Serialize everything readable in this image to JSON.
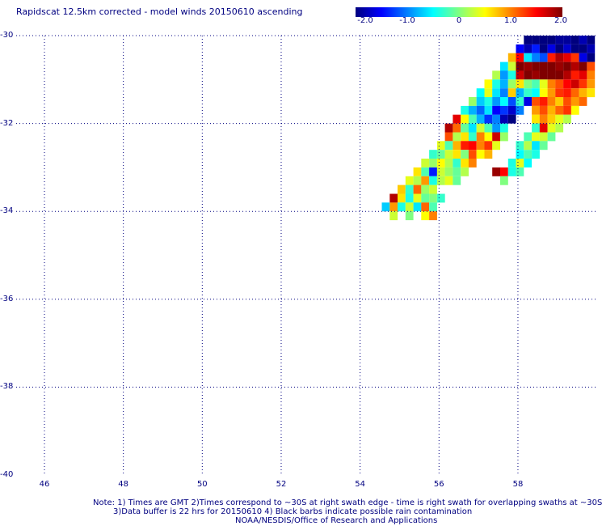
{
  "title": "Rapidscat 12.5km corrected - model winds 20150610 ascending",
  "colorbar": {
    "labels": [
      "-2.0",
      "-1.0",
      "0",
      "1.0",
      "2.0"
    ],
    "values": [
      -2.0,
      -1.0,
      0,
      1.0,
      2.0
    ],
    "min": -2.0,
    "max": 2.0,
    "colors": [
      "#00007f",
      "#0000ff",
      "#0080ff",
      "#00ffff",
      "#80ff80",
      "#ffff00",
      "#ff8000",
      "#ff0000",
      "#7f0000"
    ]
  },
  "axes": {
    "lat_labels": [
      "-30",
      "-32",
      "-34",
      "-36",
      "-38",
      "-40"
    ],
    "lat_values": [
      -30,
      -32,
      -34,
      -36,
      -38,
      -40
    ],
    "lon_labels": [
      "46",
      "48",
      "50",
      "52",
      "54",
      "56",
      "58"
    ],
    "lon_values": [
      46,
      48,
      50,
      52,
      54,
      56,
      58
    ],
    "lon_range": [
      45.1,
      60.2
    ],
    "lat_range": [
      -30,
      -40
    ],
    "grid": "dotted"
  },
  "chart_data": {
    "type": "heatmap",
    "description_of_cells": "values are wind difference in colorbar units at (lon, lat)",
    "cells": [
      [
        58.25,
        -30.1,
        -2.0
      ],
      [
        58.45,
        -30.1,
        -2.0
      ],
      [
        58.65,
        -30.1,
        -2.0
      ],
      [
        58.85,
        -30.1,
        -2.0
      ],
      [
        59.05,
        -30.1,
        -1.9
      ],
      [
        59.25,
        -30.1,
        -1.9
      ],
      [
        59.45,
        -30.1,
        -2.0
      ],
      [
        59.65,
        -30.1,
        -1.8
      ],
      [
        59.85,
        -30.1,
        -2.0
      ],
      [
        58.05,
        -30.3,
        -1.5
      ],
      [
        58.25,
        -30.3,
        -1.8
      ],
      [
        58.45,
        -30.3,
        -1.4
      ],
      [
        58.65,
        -30.3,
        -2.0
      ],
      [
        58.85,
        -30.3,
        -1.6
      ],
      [
        59.05,
        -30.3,
        -2.0
      ],
      [
        59.25,
        -30.3,
        -1.7
      ],
      [
        59.45,
        -30.3,
        -2.0
      ],
      [
        59.65,
        -30.3,
        -2.0
      ],
      [
        59.85,
        -30.3,
        -1.8
      ],
      [
        57.85,
        -30.5,
        0.8
      ],
      [
        58.05,
        -30.5,
        1.5
      ],
      [
        58.25,
        -30.5,
        -0.6
      ],
      [
        58.45,
        -30.5,
        -1.0
      ],
      [
        58.65,
        -30.5,
        -1.2
      ],
      [
        58.85,
        -30.5,
        1.4
      ],
      [
        59.05,
        -30.5,
        1.8
      ],
      [
        59.25,
        -30.5,
        1.6
      ],
      [
        59.45,
        -30.5,
        1.3
      ],
      [
        59.65,
        -30.5,
        -1.6
      ],
      [
        59.85,
        -30.5,
        -2.0
      ],
      [
        57.65,
        -30.7,
        -0.6
      ],
      [
        57.85,
        -30.7,
        0.3
      ],
      [
        58.05,
        -30.7,
        2.0
      ],
      [
        58.25,
        -30.7,
        1.9
      ],
      [
        58.45,
        -30.7,
        2.0
      ],
      [
        58.65,
        -30.7,
        2.0
      ],
      [
        58.85,
        -30.7,
        2.0
      ],
      [
        59.05,
        -30.7,
        1.9
      ],
      [
        59.25,
        -30.7,
        2.0
      ],
      [
        59.45,
        -30.7,
        1.8
      ],
      [
        59.65,
        -30.7,
        2.0
      ],
      [
        59.85,
        -30.7,
        1.2
      ],
      [
        57.45,
        -30.9,
        0.2
      ],
      [
        57.65,
        -30.9,
        -0.9
      ],
      [
        57.85,
        -30.9,
        -0.4
      ],
      [
        58.05,
        -30.9,
        1.7
      ],
      [
        58.25,
        -30.9,
        2.0
      ],
      [
        58.45,
        -30.9,
        1.9
      ],
      [
        58.65,
        -30.9,
        2.0
      ],
      [
        58.85,
        -30.9,
        2.0
      ],
      [
        59.05,
        -30.9,
        2.0
      ],
      [
        59.25,
        -30.9,
        1.8
      ],
      [
        59.45,
        -30.9,
        1.4
      ],
      [
        59.65,
        -30.9,
        1.6
      ],
      [
        59.85,
        -30.9,
        1.0
      ],
      [
        57.25,
        -31.1,
        0.5
      ],
      [
        57.45,
        -31.1,
        -0.4
      ],
      [
        57.65,
        -31.1,
        -0.8
      ],
      [
        57.85,
        -31.1,
        0.1
      ],
      [
        58.05,
        -31.1,
        0.6
      ],
      [
        58.25,
        -31.1,
        0.0
      ],
      [
        58.45,
        -31.1,
        -0.2
      ],
      [
        58.65,
        -31.1,
        0.4
      ],
      [
        58.85,
        -31.1,
        1.0
      ],
      [
        59.05,
        -31.1,
        1.2
      ],
      [
        59.25,
        -31.1,
        1.5
      ],
      [
        59.45,
        -31.1,
        1.7
      ],
      [
        59.65,
        -31.1,
        1.3
      ],
      [
        59.85,
        -31.1,
        0.9
      ],
      [
        57.05,
        -31.3,
        -0.5
      ],
      [
        57.25,
        -31.3,
        0.4
      ],
      [
        57.45,
        -31.3,
        -0.6
      ],
      [
        57.65,
        -31.3,
        -1.0
      ],
      [
        57.85,
        -31.3,
        0.7
      ],
      [
        58.05,
        -31.3,
        -0.8
      ],
      [
        58.25,
        -31.3,
        -0.3
      ],
      [
        58.45,
        -31.3,
        -0.5
      ],
      [
        58.65,
        -31.3,
        0.5
      ],
      [
        58.85,
        -31.3,
        0.9
      ],
      [
        59.05,
        -31.3,
        1.3
      ],
      [
        59.25,
        -31.3,
        1.4
      ],
      [
        59.45,
        -31.3,
        1.1
      ],
      [
        59.65,
        -31.3,
        0.8
      ],
      [
        59.85,
        -31.3,
        0.6
      ],
      [
        56.85,
        -31.5,
        0.1
      ],
      [
        57.05,
        -31.5,
        -0.7
      ],
      [
        57.25,
        -31.5,
        -0.4
      ],
      [
        57.45,
        -31.5,
        -0.9
      ],
      [
        57.65,
        -31.5,
        -0.5
      ],
      [
        57.85,
        -31.5,
        -1.2
      ],
      [
        58.05,
        -31.5,
        -0.3
      ],
      [
        58.25,
        -31.5,
        -1.6
      ],
      [
        58.45,
        -31.5,
        1.2
      ],
      [
        58.65,
        -31.5,
        1.4
      ],
      [
        58.85,
        -31.5,
        1.0
      ],
      [
        59.05,
        -31.5,
        0.7
      ],
      [
        59.25,
        -31.5,
        1.2
      ],
      [
        59.45,
        -31.5,
        0.9
      ],
      [
        59.65,
        -31.5,
        1.1
      ],
      [
        56.65,
        -31.7,
        -0.4
      ],
      [
        56.85,
        -31.7,
        -0.8
      ],
      [
        57.05,
        -31.7,
        -1.1
      ],
      [
        57.25,
        -31.7,
        -0.6
      ],
      [
        57.45,
        -31.7,
        -1.5
      ],
      [
        57.65,
        -31.7,
        -1.3
      ],
      [
        57.85,
        -31.7,
        -1.7
      ],
      [
        58.05,
        -31.7,
        -1.0
      ],
      [
        58.45,
        -31.7,
        0.9
      ],
      [
        58.65,
        -31.7,
        1.2
      ],
      [
        58.85,
        -31.7,
        0.8
      ],
      [
        59.05,
        -31.7,
        1.1
      ],
      [
        59.25,
        -31.7,
        1.3
      ],
      [
        59.45,
        -31.7,
        0.5
      ],
      [
        56.45,
        -31.9,
        1.6
      ],
      [
        56.65,
        -31.9,
        0.5
      ],
      [
        56.85,
        -31.9,
        -0.2
      ],
      [
        57.05,
        -31.9,
        -0.8
      ],
      [
        57.25,
        -31.9,
        -1.3
      ],
      [
        57.45,
        -31.9,
        -1.0
      ],
      [
        57.65,
        -31.9,
        -1.8
      ],
      [
        57.85,
        -31.9,
        -2.0
      ],
      [
        58.45,
        -31.9,
        0.6
      ],
      [
        58.65,
        -31.9,
        1.0
      ],
      [
        58.85,
        -31.9,
        0.7
      ],
      [
        59.05,
        -31.9,
        0.4
      ],
      [
        59.25,
        -31.9,
        0.2
      ],
      [
        56.25,
        -32.1,
        1.8
      ],
      [
        56.45,
        -32.1,
        1.1
      ],
      [
        56.65,
        -32.1,
        -0.1
      ],
      [
        56.85,
        -32.1,
        -0.6
      ],
      [
        57.05,
        -32.1,
        0.3
      ],
      [
        57.25,
        -32.1,
        -0.2
      ],
      [
        57.45,
        -32.1,
        -0.9
      ],
      [
        57.65,
        -32.1,
        -0.4
      ],
      [
        58.45,
        -32.1,
        -0.3
      ],
      [
        58.65,
        -32.1,
        1.6
      ],
      [
        58.85,
        -32.1,
        0.4
      ],
      [
        59.05,
        -32.1,
        0.2
      ],
      [
        56.25,
        -32.3,
        1.2
      ],
      [
        56.45,
        -32.3,
        0.2
      ],
      [
        56.65,
        -32.3,
        0.6
      ],
      [
        56.85,
        -32.3,
        -0.3
      ],
      [
        57.05,
        -32.3,
        1.0
      ],
      [
        57.25,
        -32.3,
        0.5
      ],
      [
        57.45,
        -32.3,
        1.7
      ],
      [
        57.65,
        -32.3,
        0.1
      ],
      [
        58.25,
        -32.3,
        -0.2
      ],
      [
        58.45,
        -32.3,
        0.4
      ],
      [
        58.65,
        -32.3,
        0.3
      ],
      [
        58.85,
        -32.3,
        -0.1
      ],
      [
        56.05,
        -32.5,
        0.4
      ],
      [
        56.25,
        -32.5,
        -0.2
      ],
      [
        56.45,
        -32.5,
        0.8
      ],
      [
        56.65,
        -32.5,
        1.4
      ],
      [
        56.85,
        -32.5,
        1.5
      ],
      [
        57.05,
        -32.5,
        1.0
      ],
      [
        57.25,
        -32.5,
        1.3
      ],
      [
        57.45,
        -32.5,
        0.4
      ],
      [
        58.05,
        -32.5,
        -0.3
      ],
      [
        58.25,
        -32.5,
        0.2
      ],
      [
        58.45,
        -32.5,
        -0.6
      ],
      [
        58.65,
        -32.5,
        -0.1
      ],
      [
        55.85,
        -32.7,
        -0.3
      ],
      [
        56.05,
        -32.7,
        -0.1
      ],
      [
        56.25,
        -32.7,
        0.3
      ],
      [
        56.45,
        -32.7,
        0.6
      ],
      [
        56.65,
        -32.7,
        0.0
      ],
      [
        56.85,
        -32.7,
        1.2
      ],
      [
        57.05,
        -32.7,
        0.5
      ],
      [
        57.25,
        -32.7,
        0.8
      ],
      [
        58.05,
        -32.7,
        -0.5
      ],
      [
        58.25,
        -32.7,
        -0.2
      ],
      [
        58.45,
        -32.7,
        -0.4
      ],
      [
        55.65,
        -32.9,
        0.3
      ],
      [
        55.85,
        -32.9,
        0.1
      ],
      [
        56.05,
        -32.9,
        0.5
      ],
      [
        56.25,
        -32.9,
        0.2
      ],
      [
        56.45,
        -32.9,
        -0.3
      ],
      [
        56.65,
        -32.9,
        0.6
      ],
      [
        56.85,
        -32.9,
        1.0
      ],
      [
        57.85,
        -32.9,
        -0.4
      ],
      [
        58.05,
        -32.9,
        0.4
      ],
      [
        58.25,
        -32.9,
        -0.5
      ],
      [
        55.45,
        -33.1,
        0.6
      ],
      [
        55.65,
        -33.1,
        -0.2
      ],
      [
        55.85,
        -33.1,
        -1.4
      ],
      [
        56.05,
        -33.1,
        0.3
      ],
      [
        56.25,
        -33.1,
        0.1
      ],
      [
        56.45,
        -33.1,
        -0.1
      ],
      [
        56.65,
        -33.1,
        0.2
      ],
      [
        57.45,
        -33.1,
        1.9
      ],
      [
        57.65,
        -33.1,
        1.5
      ],
      [
        57.85,
        -33.1,
        -0.4
      ],
      [
        58.05,
        -33.1,
        -0.2
      ],
      [
        55.25,
        -33.3,
        0.4
      ],
      [
        55.45,
        -33.3,
        0.2
      ],
      [
        55.65,
        -33.3,
        0.9
      ],
      [
        55.85,
        -33.3,
        -0.4
      ],
      [
        56.05,
        -33.3,
        0.2
      ],
      [
        56.25,
        -33.3,
        0.4
      ],
      [
        56.45,
        -33.3,
        -0.1
      ],
      [
        57.65,
        -33.3,
        0.0
      ],
      [
        55.05,
        -33.5,
        0.7
      ],
      [
        55.25,
        -33.5,
        -0.3
      ],
      [
        55.45,
        -33.5,
        1.1
      ],
      [
        55.65,
        -33.5,
        0.1
      ],
      [
        55.85,
        -33.5,
        0.3
      ],
      [
        54.85,
        -33.7,
        1.8
      ],
      [
        55.05,
        -33.7,
        0.6
      ],
      [
        55.25,
        -33.7,
        -0.4
      ],
      [
        55.45,
        -33.7,
        0.4
      ],
      [
        55.65,
        -33.7,
        -0.1
      ],
      [
        55.85,
        -33.7,
        0.0
      ],
      [
        56.05,
        -33.7,
        -0.3
      ],
      [
        54.65,
        -33.9,
        -0.7
      ],
      [
        54.85,
        -33.9,
        0.9
      ],
      [
        55.05,
        -33.9,
        -0.4
      ],
      [
        55.25,
        -33.9,
        0.3
      ],
      [
        55.45,
        -33.9,
        -0.6
      ],
      [
        55.65,
        -33.9,
        1.1
      ],
      [
        55.85,
        -33.9,
        -0.2
      ],
      [
        54.85,
        -34.1,
        0.3
      ],
      [
        55.25,
        -34.1,
        0.0
      ],
      [
        55.65,
        -34.1,
        0.5
      ],
      [
        55.85,
        -34.1,
        1.0
      ]
    ]
  },
  "notes": {
    "line1": "Note: 1) Times are GMT 2)Times correspond to ~30S at right swath edge - time is right swath for overlapping swaths at ~30S",
    "line2": "3)Data buffer is 22 hrs for 20150610 4) Black barbs indicate possible rain contamination",
    "line3": "NOAA/NESDIS/Office of Research and Applications"
  }
}
